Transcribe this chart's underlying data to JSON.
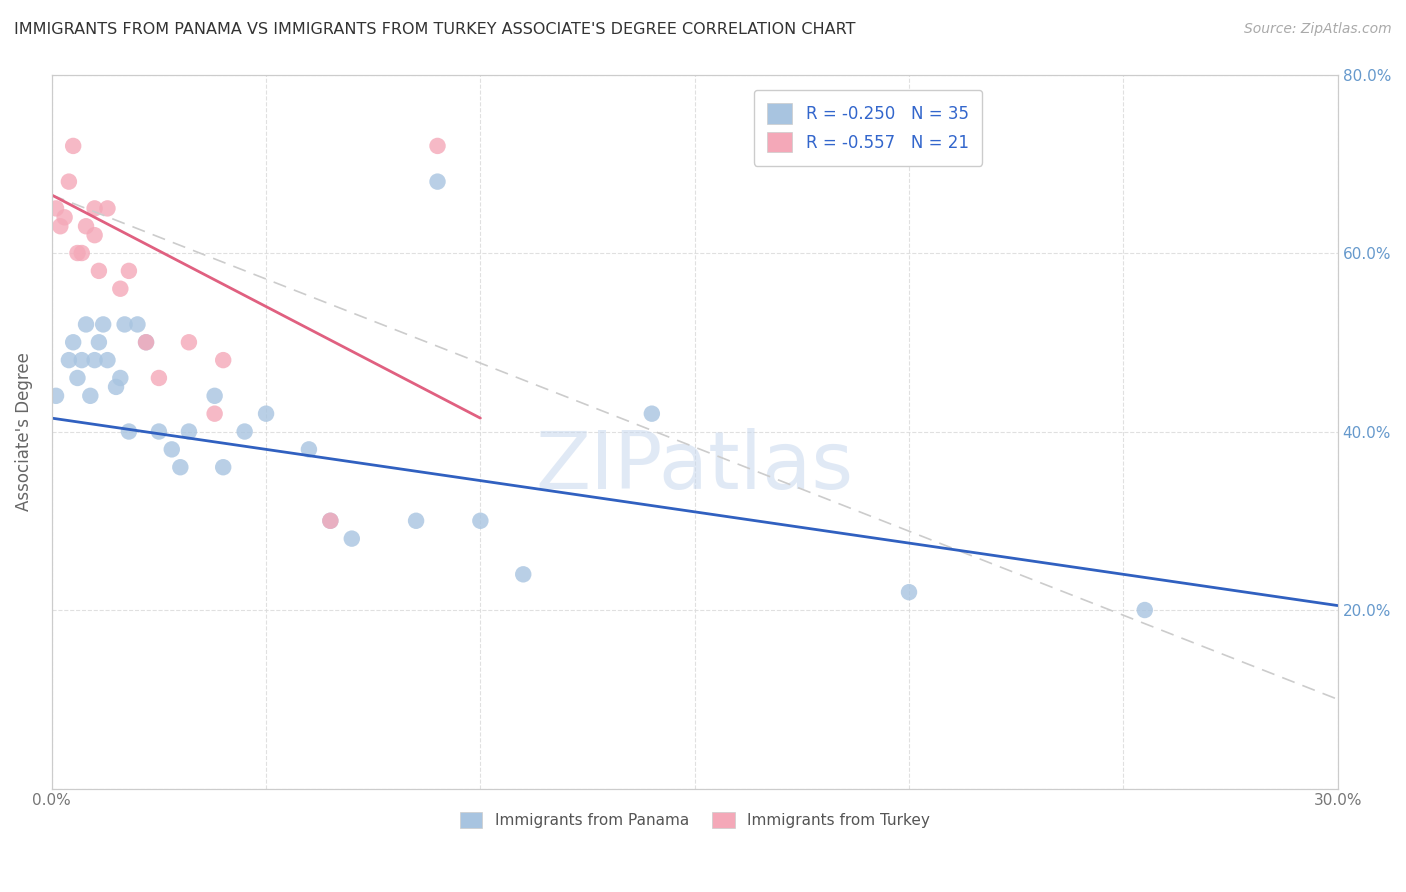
{
  "title": "IMMIGRANTS FROM PANAMA VS IMMIGRANTS FROM TURKEY ASSOCIATE'S DEGREE CORRELATION CHART",
  "source": "Source: ZipAtlas.com",
  "ylabel": "Associate's Degree",
  "x_min": 0.0,
  "x_max": 0.3,
  "y_min": 0.0,
  "y_max": 0.8,
  "legend_r1": "R = -0.250",
  "legend_n1": "N = 35",
  "legend_r2": "R = -0.557",
  "legend_n2": "N = 21",
  "panama_color": "#a8c4e0",
  "turkey_color": "#f4a8b8",
  "panama_line_color": "#3060c0",
  "turkey_line_color": "#e06080",
  "dashed_line_color": "#cccccc",
  "watermark_text": "ZIPatlas",
  "panama_x": [
    0.001,
    0.004,
    0.005,
    0.006,
    0.007,
    0.008,
    0.009,
    0.01,
    0.011,
    0.012,
    0.013,
    0.015,
    0.016,
    0.017,
    0.018,
    0.02,
    0.022,
    0.025,
    0.028,
    0.03,
    0.032,
    0.038,
    0.04,
    0.045,
    0.05,
    0.06,
    0.065,
    0.07,
    0.085,
    0.09,
    0.1,
    0.11,
    0.14,
    0.2,
    0.255
  ],
  "panama_y": [
    0.44,
    0.48,
    0.5,
    0.46,
    0.48,
    0.52,
    0.44,
    0.48,
    0.5,
    0.52,
    0.48,
    0.45,
    0.46,
    0.52,
    0.4,
    0.52,
    0.5,
    0.4,
    0.38,
    0.36,
    0.4,
    0.44,
    0.36,
    0.4,
    0.42,
    0.38,
    0.3,
    0.28,
    0.3,
    0.68,
    0.3,
    0.24,
    0.42,
    0.22,
    0.2
  ],
  "turkey_x": [
    0.001,
    0.002,
    0.003,
    0.004,
    0.005,
    0.006,
    0.007,
    0.008,
    0.01,
    0.01,
    0.011,
    0.013,
    0.016,
    0.018,
    0.022,
    0.025,
    0.032,
    0.038,
    0.04,
    0.065,
    0.09
  ],
  "turkey_y": [
    0.65,
    0.63,
    0.64,
    0.68,
    0.72,
    0.6,
    0.6,
    0.63,
    0.65,
    0.62,
    0.58,
    0.65,
    0.56,
    0.58,
    0.5,
    0.46,
    0.5,
    0.42,
    0.48,
    0.3,
    0.72
  ],
  "panama_line_x0": 0.0,
  "panama_line_y0": 0.415,
  "panama_line_x1": 0.3,
  "panama_line_y1": 0.205,
  "turkey_line_x0": 0.0,
  "turkey_line_y0": 0.665,
  "turkey_line_x1": 0.1,
  "turkey_line_y1": 0.415,
  "dashed_line_x0": 0.0,
  "dashed_line_y0": 0.665,
  "dashed_line_x1": 0.3,
  "dashed_line_y1": 0.1
}
